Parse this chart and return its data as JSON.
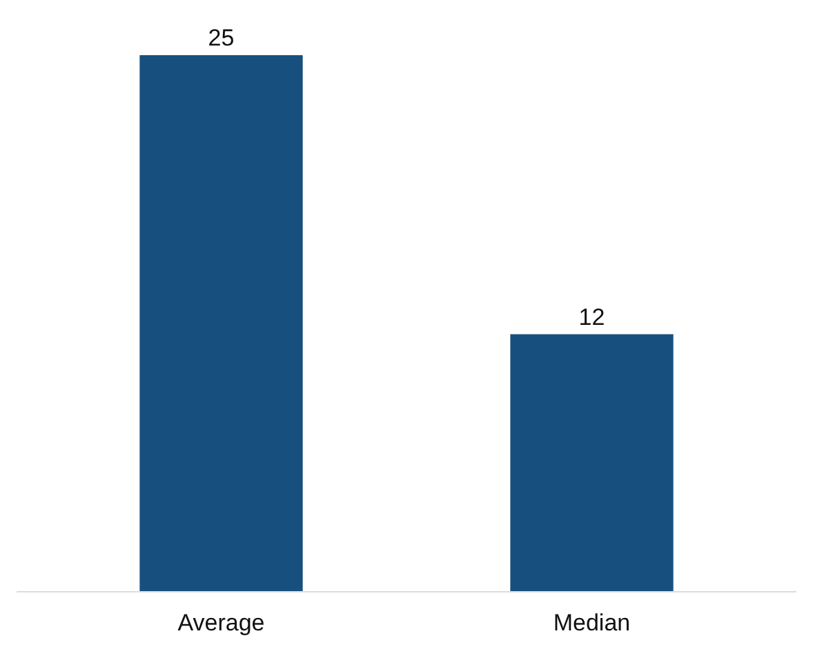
{
  "chart_data": {
    "type": "bar",
    "categories": [
      "Average",
      "Median"
    ],
    "values": [
      25,
      12
    ],
    "color": "#17507f",
    "data_labels": true
  }
}
